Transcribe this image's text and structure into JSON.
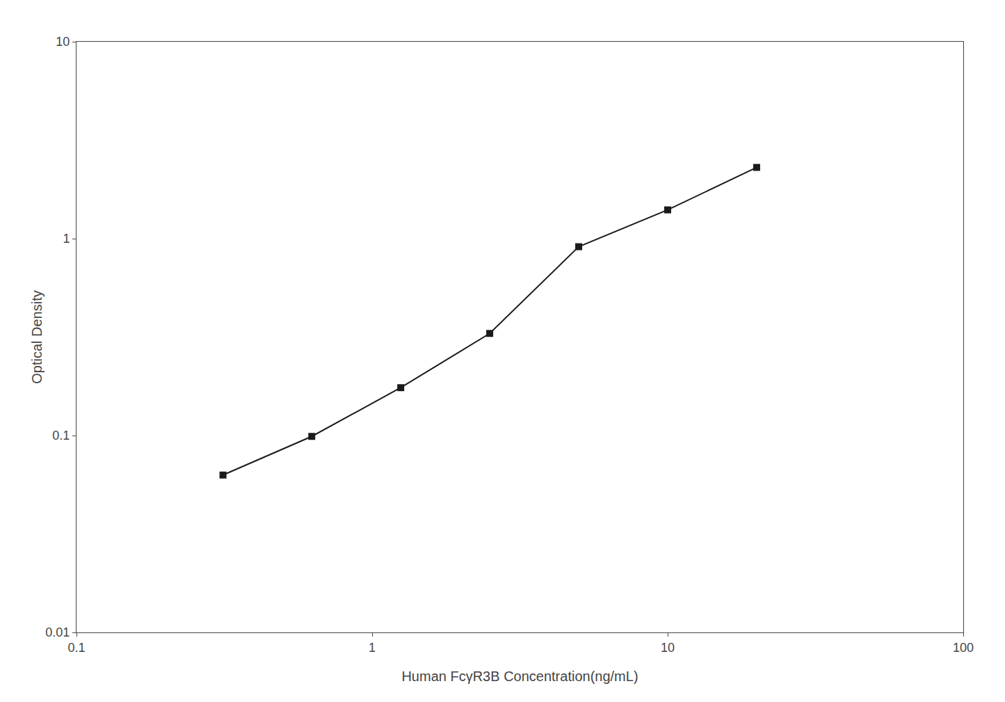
{
  "chart_data": {
    "type": "line",
    "x": [
      0.313,
      0.625,
      1.25,
      2.5,
      5.0,
      10.0,
      20.0
    ],
    "values": [
      0.063,
      0.099,
      0.175,
      0.33,
      0.91,
      1.4,
      2.3
    ],
    "xlabel": "Human FcγR3B Concentration(ng/mL)",
    "ylabel": "Optical Density",
    "xlim": [
      0.1,
      100
    ],
    "ylim": [
      0.01,
      10
    ],
    "xticks": [
      0.1,
      1,
      10,
      100
    ],
    "yticks": [
      0.01,
      0.1,
      1,
      10
    ],
    "log": true,
    "grid": false,
    "color": "#1a1a1a",
    "marker": "square"
  }
}
